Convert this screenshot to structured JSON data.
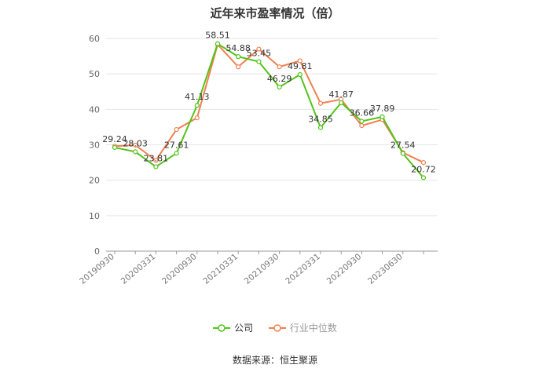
{
  "title": "近年来市盈率情况（倍）",
  "source": "数据来源：恒生聚源",
  "colors": {
    "company": "#52c41a",
    "industry": "#f08050",
    "grid": "#e6e6e6",
    "axis": "#999999",
    "text": "#333333"
  },
  "chart_data": {
    "type": "line",
    "title": "近年来市盈率情况（倍）",
    "xlabel": "",
    "ylabel": "",
    "ylim": [
      0,
      60
    ],
    "yticks": [
      0,
      10,
      20,
      30,
      40,
      50,
      60
    ],
    "grid": true,
    "legend_position": "bottom",
    "categories": [
      "20190930",
      "",
      "20200331",
      "",
      "20200930",
      "",
      "20210331",
      "",
      "20210930",
      "",
      "20220331",
      "",
      "20220930",
      "",
      "20230630",
      ""
    ],
    "x_tick_labels": [
      "20190930",
      "20200331",
      "20200930",
      "20210331",
      "20210930",
      "20220331",
      "20220930",
      "20230630"
    ],
    "series": [
      {
        "name": "公司",
        "color": "#52c41a",
        "values": [
          29.24,
          28.03,
          23.81,
          27.61,
          41.13,
          58.51,
          54.88,
          53.45,
          46.29,
          49.81,
          34.85,
          41.87,
          36.66,
          37.89,
          27.54,
          20.72
        ],
        "labels": [
          "29.24",
          "28.03",
          "23.81",
          "27.61",
          "41.13",
          "58.51",
          "54.88",
          "53.45",
          "46.29",
          "49.81",
          "34.85",
          "41.87",
          "36.66",
          "37.89",
          "27.54",
          "20.72"
        ]
      },
      {
        "name": "行业中位数",
        "color": "#f08050",
        "values": [
          29.6,
          29.9,
          25.6,
          34.3,
          37.6,
          58.3,
          52.0,
          57.0,
          52.0,
          53.7,
          41.7,
          42.8,
          35.4,
          37.1,
          27.8,
          25.0
        ]
      }
    ]
  }
}
